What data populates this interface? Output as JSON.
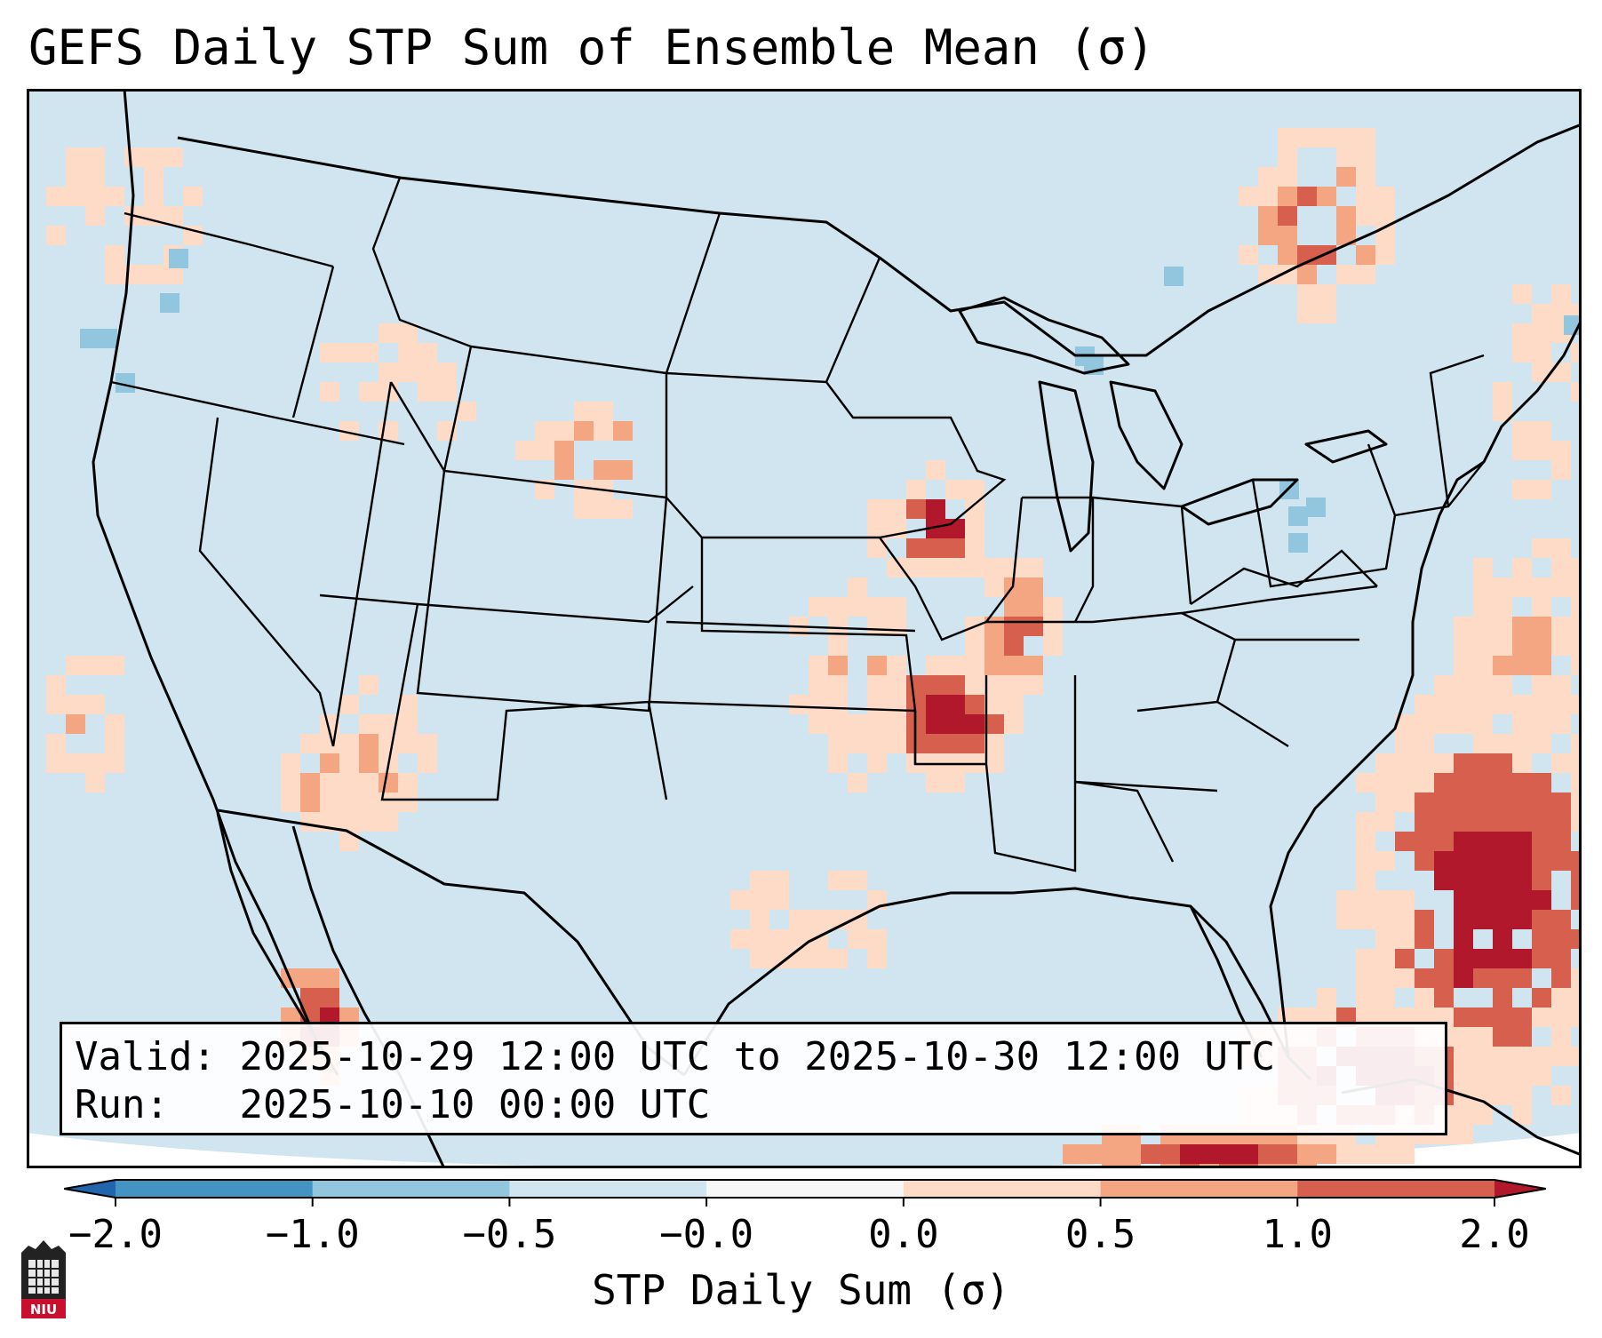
{
  "title": "GEFS Daily STP Sum of Ensemble Mean (σ)",
  "info": {
    "valid_label": "Valid:",
    "valid_value": "2025-10-29 12:00 UTC to 2025-10-30 12:00 UTC",
    "run_label": "Run:",
    "run_value": "2025-10-10 00:00 UTC"
  },
  "colorbar": {
    "label": "STP Daily Sum (σ)",
    "ticks": [
      "−2.0",
      "−1.0",
      "−0.5",
      "−0.0",
      "0.0",
      "0.5",
      "1.0",
      "2.0"
    ],
    "bins": [
      {
        "color": "#2166ac"
      },
      {
        "color": "#4393c3"
      },
      {
        "color": "#92c5de"
      },
      {
        "color": "#d1e5f0"
      },
      {
        "color": "#f7f7f7"
      },
      {
        "color": "#fddbc7"
      },
      {
        "color": "#f4a582"
      },
      {
        "color": "#d6604d"
      },
      {
        "color": "#b2182b"
      }
    ]
  },
  "map": {
    "background_color": "#d1e5f0",
    "outline_color": "#000000"
  },
  "logo": {
    "icon": "niu-logo-icon",
    "text": "NIU"
  }
}
